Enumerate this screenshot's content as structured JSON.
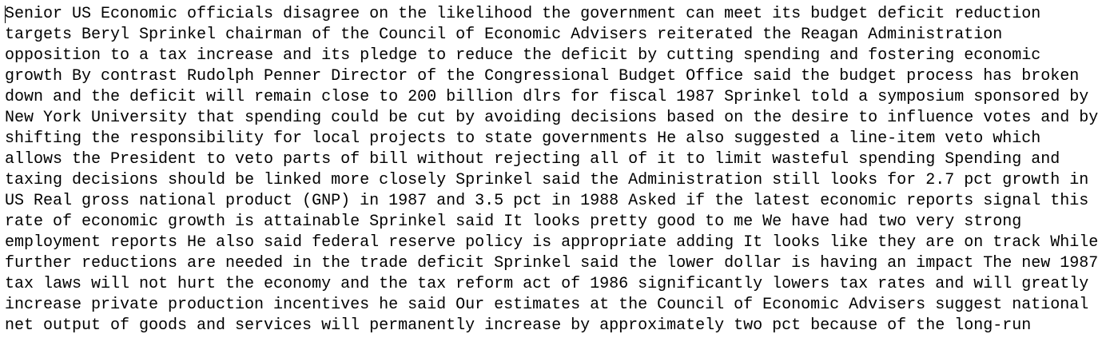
{
  "document": {
    "lines": [
      "Senior US Economic officials disagree on the likelihood the government can meet its budget deficit reduction",
      "targets Beryl Sprinkel chairman of the Council of Economic Advisers reiterated the Reagan Administration",
      "opposition to a tax increase and its pledge to reduce the deficit by cutting spending and fostering economic",
      "growth By contrast Rudolph Penner Director of the Congressional Budget Office said the budget process has broken",
      "down and the deficit will remain close to 200 billion dlrs for fiscal 1987 Sprinkel told a symposium sponsored by",
      "New York University that spending could be cut by avoiding decisions based on the desire to influence votes and by",
      "shifting the responsibility for local projects to state governments He also suggested a line-item veto which",
      "allows the President to veto parts of bill without rejecting all of it to limit wasteful spending Spending and",
      "taxing decisions should be linked more closely Sprinkel said the Administration still looks for 2.7 pct growth in",
      "US Real gross national product (GNP) in 1987 and 3.5 pct in 1988 Asked if the latest economic reports signal this",
      "rate of economic growth is attainable Sprinkel said It looks pretty good to me We have had two very strong",
      "employment reports He also said federal reserve policy is appropriate adding It looks like they are on track While",
      "further reductions are needed in the trade deficit Sprinkel said the lower dollar is having an impact The new 1987",
      "tax laws will not hurt the economy and the tax reform act of 1986 significantly lowers tax rates and will greatly",
      "increase private production incentives he said Our estimates at the Council of Economic Advisers suggest national",
      "net output of goods and services will permanently increase by approximately two pct because of the long-run"
    ]
  }
}
